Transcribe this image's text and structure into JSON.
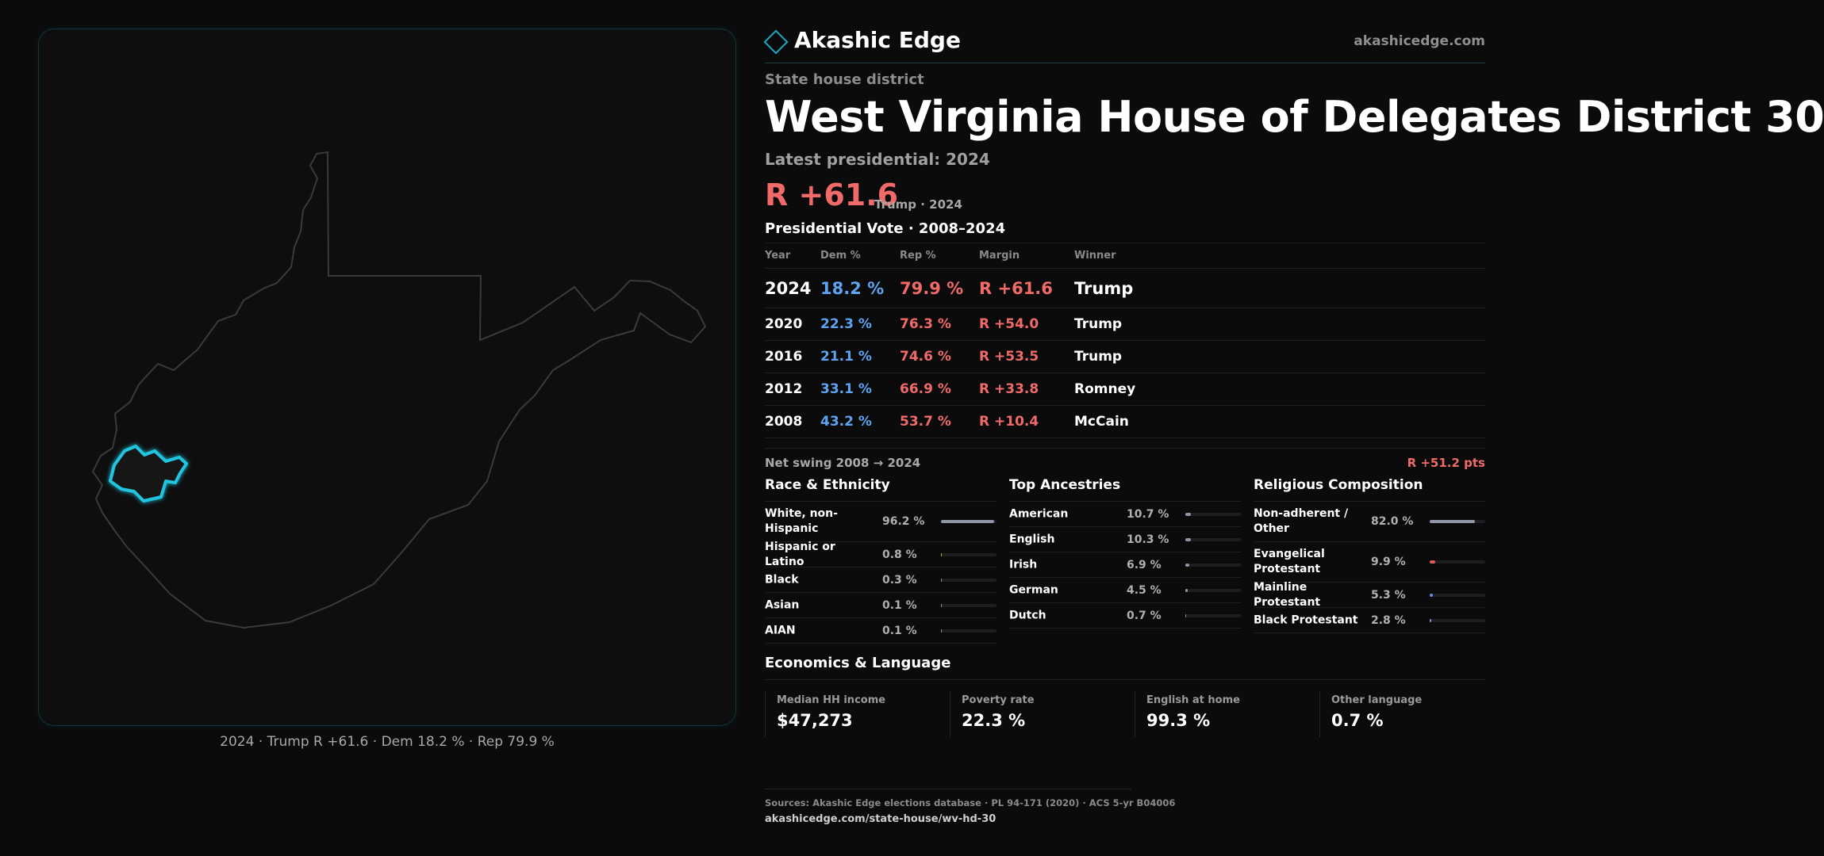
{
  "brand": {
    "name": "Akashic Edge",
    "url": "akashicedge.com"
  },
  "district": {
    "type": "State house district",
    "title": "West Virginia House of Delegates District 30",
    "latest_label": "Latest presidential: 2024",
    "latest_margin": "R +61.6",
    "latest_sub": "Trump · 2024"
  },
  "map": {
    "caption": "2024 · Trump R +61.6 · Dem 18.2 % · Rep 79.9 %",
    "colors": {
      "outline": "#3a3a3c",
      "district": "#22c5e0"
    }
  },
  "presidential": {
    "title": "Presidential Vote · 2008–2024",
    "headers": {
      "year": "Year",
      "dem": "Dem %",
      "rep": "Rep %",
      "margin": "Margin",
      "winner": "Winner"
    },
    "rows": [
      {
        "year": "2024",
        "dem": "18.2 %",
        "rep": "79.9 %",
        "margin": "R +61.6",
        "winner": "Trump"
      },
      {
        "year": "2020",
        "dem": "22.3 %",
        "rep": "76.3 %",
        "margin": "R +54.0",
        "winner": "Trump"
      },
      {
        "year": "2016",
        "dem": "21.1 %",
        "rep": "74.6 %",
        "margin": "R +53.5",
        "winner": "Trump"
      },
      {
        "year": "2012",
        "dem": "33.1 %",
        "rep": "66.9 %",
        "margin": "R +33.8",
        "winner": "Romney"
      },
      {
        "year": "2008",
        "dem": "43.2 %",
        "rep": "53.7 %",
        "margin": "R +10.4",
        "winner": "McCain"
      }
    ],
    "swing_label": "Net swing 2008 → 2024",
    "swing_value": "R +51.2 pts"
  },
  "race": {
    "title": "Race & Ethnicity",
    "items": [
      {
        "label": "White, non-Hispanic",
        "value": "96.2 %",
        "pct": 96.2,
        "color": "#8e96a3"
      },
      {
        "label": "Hispanic or Latino",
        "value": "0.8 %",
        "pct": 0.8,
        "color": "#c9a227"
      },
      {
        "label": "Black",
        "value": "0.3 %",
        "pct": 0.3,
        "color": "#8e96a3"
      },
      {
        "label": "Asian",
        "value": "0.1 %",
        "pct": 0.1,
        "color": "#8e96a3"
      },
      {
        "label": "AIAN",
        "value": "0.1 %",
        "pct": 0.1,
        "color": "#8e96a3"
      }
    ]
  },
  "ancestry": {
    "title": "Top Ancestries",
    "items": [
      {
        "label": "American",
        "value": "10.7 %",
        "pct": 10.7,
        "color": "#8e96a3"
      },
      {
        "label": "English",
        "value": "10.3 %",
        "pct": 10.3,
        "color": "#8e96a3"
      },
      {
        "label": "Irish",
        "value": "6.9 %",
        "pct": 6.9,
        "color": "#8e96a3"
      },
      {
        "label": "German",
        "value": "4.5 %",
        "pct": 4.5,
        "color": "#8e96a3"
      },
      {
        "label": "Dutch",
        "value": "0.7 %",
        "pct": 0.7,
        "color": "#8e96a3"
      }
    ]
  },
  "religion": {
    "title": "Religious Composition",
    "items": [
      {
        "label": "Non-adherent / Other",
        "value": "82.0 %",
        "pct": 82.0,
        "color": "#8e96a3"
      },
      {
        "label": "Evangelical Protestant",
        "value": "9.9 %",
        "pct": 9.9,
        "color": "#e05a5a"
      },
      {
        "label": "Mainline Protestant",
        "value": "5.3 %",
        "pct": 5.3,
        "color": "#5a8fe0"
      },
      {
        "label": "Black Protestant",
        "value": "2.8 %",
        "pct": 2.8,
        "color": "#9a7fe0"
      }
    ]
  },
  "economics": {
    "title": "Economics & Language",
    "items": [
      {
        "label": "Median HH income",
        "value": "$47,273"
      },
      {
        "label": "Poverty rate",
        "value": "22.3 %"
      },
      {
        "label": "English at home",
        "value": "99.3 %"
      },
      {
        "label": "Other language",
        "value": "0.7 %"
      }
    ]
  },
  "sources": {
    "text": "Sources: Akashic Edge elections database · PL 94-171 (2020) · ACS 5-yr B04006",
    "url": "akashicedge.com/state-house/wv-hd-30"
  }
}
